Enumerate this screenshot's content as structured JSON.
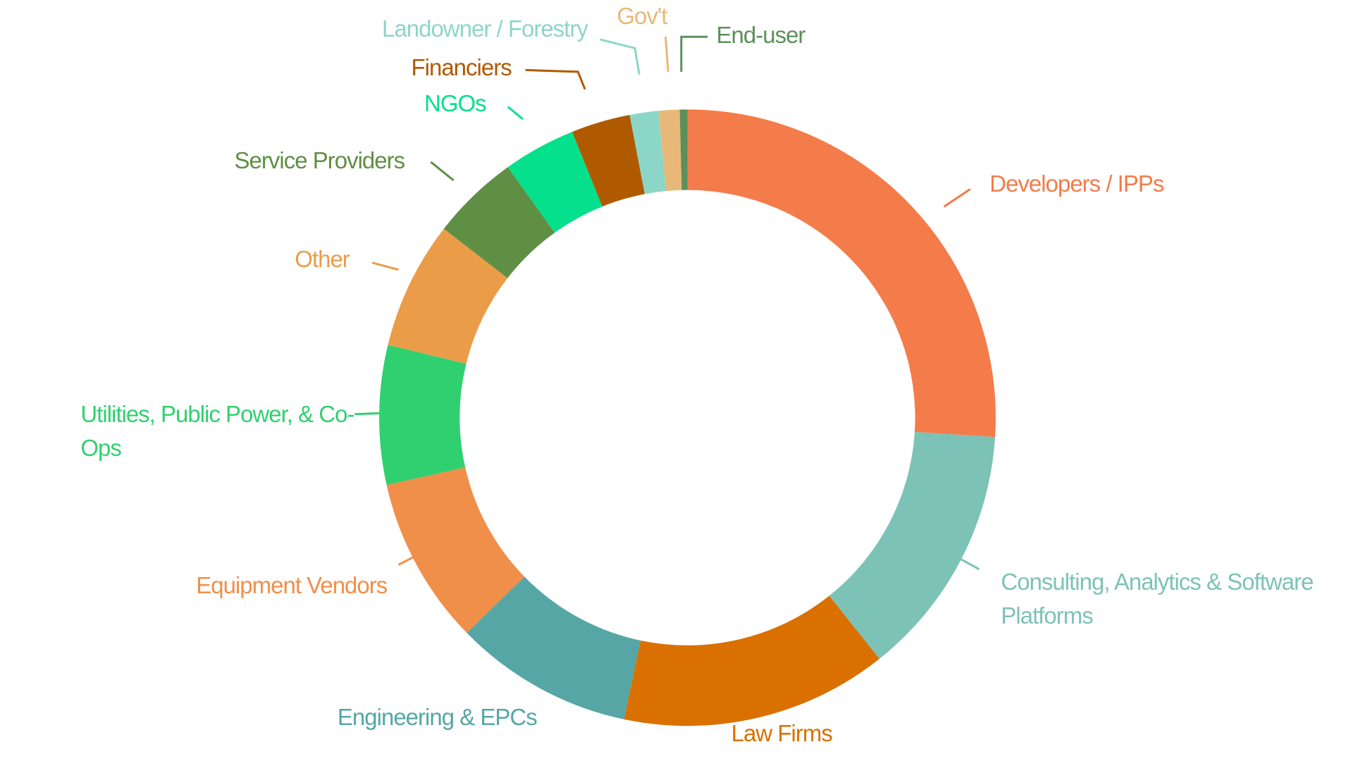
{
  "chart_data": {
    "type": "pie",
    "categories": [
      "Developers / IPPs",
      "Consulting, Analytics & Software Platforms",
      "Law Firms",
      "Engineering & EPCs",
      "Equipment Vendors",
      "Utilities, Public Power, & Co-Ops",
      "Other",
      "Service Providers",
      "NGOs",
      "Financiers",
      "Landowner / Forestry",
      "Gov't",
      "End-user"
    ],
    "values": [
      26,
      13.3,
      14,
      9.4,
      8.8,
      7.3,
      6.7,
      4.6,
      3.8,
      3.1,
      1.5,
      1.1,
      0.4
    ],
    "colors": [
      "#f47b4a",
      "#7dc2b6",
      "#d97000",
      "#56a6a6",
      "#f08f4a",
      "#30d070",
      "#eb9c48",
      "#5f8f44",
      "#05e08c",
      "#b05a00",
      "#8cd6c8",
      "#e8b878",
      "#5d8f5a"
    ]
  }
}
